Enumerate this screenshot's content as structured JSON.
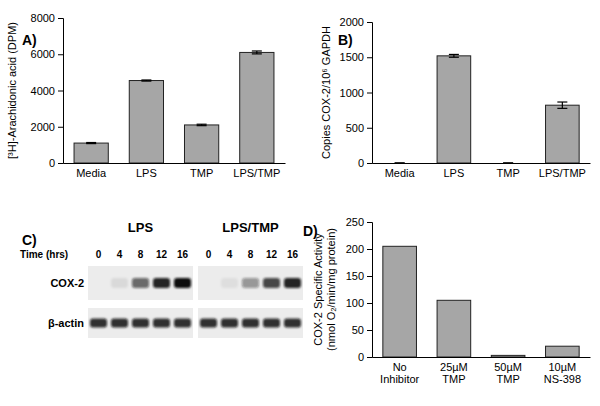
{
  "chart_data": [
    {
      "type": "bar",
      "title": "A)",
      "y_label": "[³H]-Arachidonic acid (DPM)",
      "categories": [
        "Media",
        "LPS",
        "TMP",
        "LPS/TMP"
      ],
      "values": [
        1100,
        4550,
        2100,
        6100
      ],
      "errors": [
        30,
        30,
        40,
        80
      ],
      "color": "#a6a6a6",
      "ylim": [
        0,
        8000
      ],
      "yticks": [
        0,
        2000,
        4000,
        6000,
        8000
      ]
    },
    {
      "type": "bar",
      "title": "B)",
      "y_label": "Copies COX-2/10⁶ GAPDH",
      "categories": [
        "Media",
        "LPS",
        "TMP",
        "LPS/TMP"
      ],
      "values": [
        0,
        1520,
        0,
        820
      ],
      "errors": [
        0,
        20,
        0,
        45
      ],
      "color": "#a6a6a6",
      "ylim": [
        0,
        2000
      ],
      "yticks": [
        0,
        500,
        1000,
        1500,
        2000
      ]
    },
    {
      "type": "blot",
      "title": "C)",
      "x_label": "Time (hrs)",
      "groups": [
        "LPS",
        "LPS/TMP"
      ],
      "lanes": [
        0,
        4,
        8,
        12,
        16
      ],
      "rows": [
        {
          "name": "COX-2",
          "intensities": [
            [
              0,
              0.08,
              0.6,
              0.9,
              1
            ],
            [
              0,
              0.06,
              0.4,
              0.75,
              0.9
            ]
          ]
        },
        {
          "name": "β-actin",
          "intensities": [
            [
              0.85,
              0.85,
              0.85,
              0.85,
              0.85
            ],
            [
              0.85,
              0.85,
              0.85,
              0.85,
              0.85
            ]
          ]
        }
      ]
    },
    {
      "type": "bar",
      "title": "D)",
      "y_label": "COX-2 Specific Activity (nmol O₂/min/mg protein)",
      "categories": [
        "No Inhibitor",
        "25µM TMP",
        "50µM TMP",
        "10µM NS-398"
      ],
      "values": [
        205,
        105,
        3,
        20
      ],
      "color": "#a6a6a6",
      "ylim": [
        0,
        250
      ],
      "yticks": [
        0,
        50,
        100,
        150,
        200,
        250
      ]
    }
  ]
}
